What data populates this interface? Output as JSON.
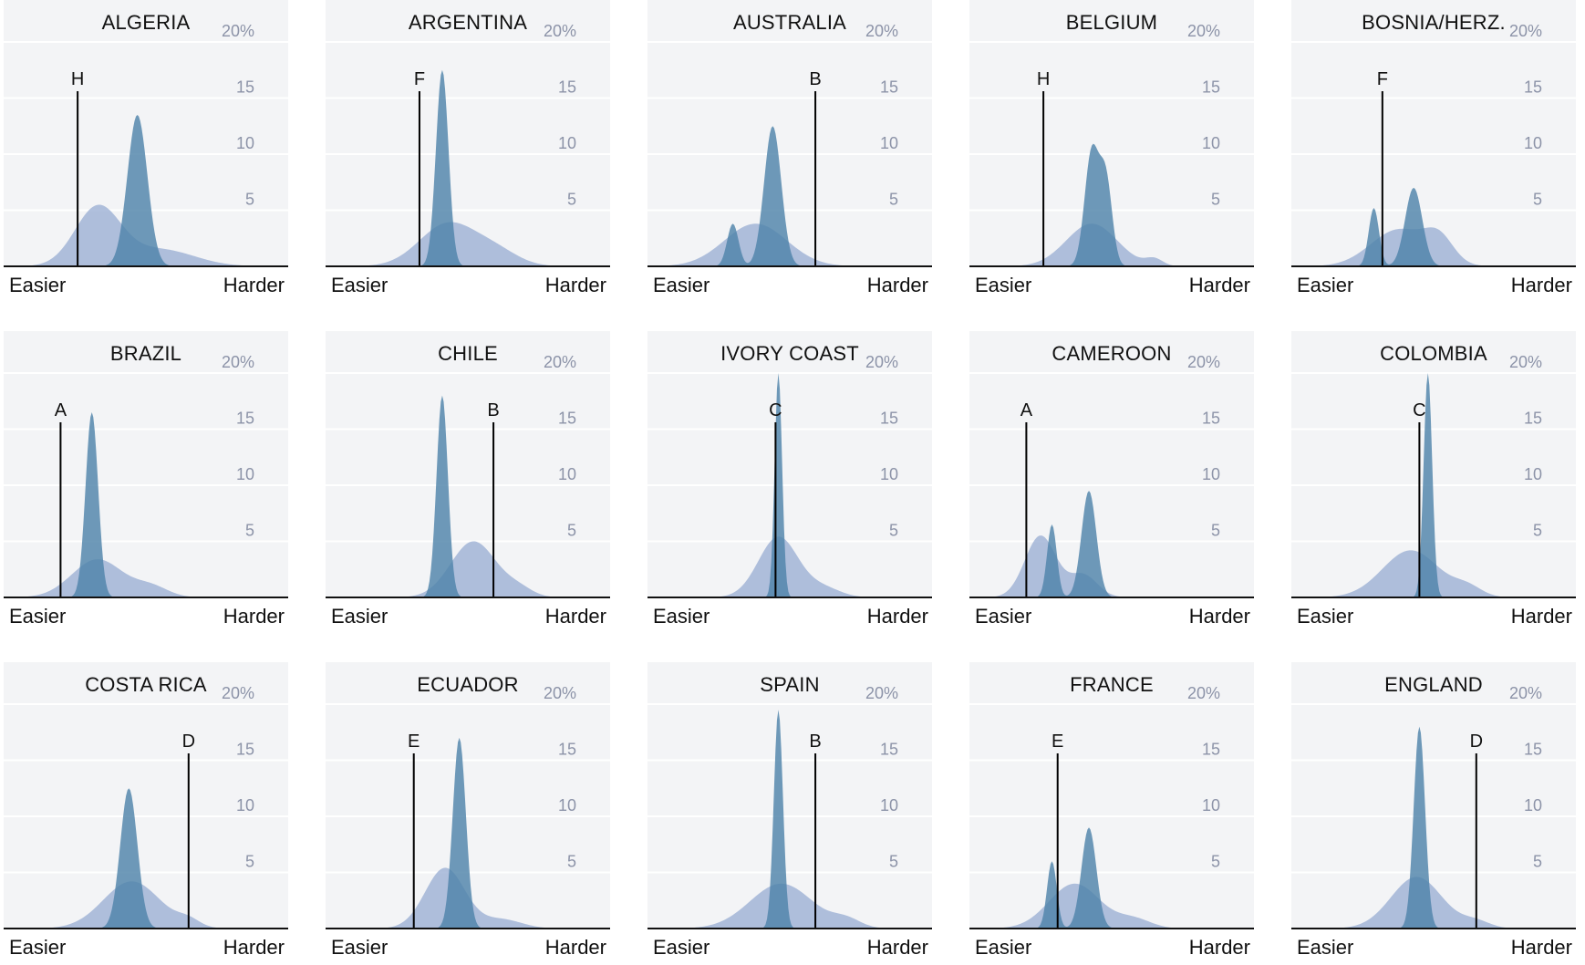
{
  "axis": {
    "y_ticks": [
      "20%",
      "15",
      "10",
      "5"
    ],
    "x_left_label": "Easier",
    "x_right_label": "Harder"
  },
  "colors": {
    "dark_fill": "#4f84aa",
    "light_fill": "#9aaed3",
    "bg": "#f3f4f6",
    "line": "#000000"
  },
  "chart_data": [
    {
      "type": "area",
      "title": "ALGERIA",
      "group": "H",
      "group_x": 0.26,
      "ylim": [
        0,
        20
      ],
      "series": [
        {
          "name": "",
          "peaks": [
            [
              0.47,
              13.5,
              0.035
            ]
          ]
        },
        {
          "name": "",
          "peaks": [
            [
              0.33,
              5.2,
              0.08
            ],
            [
              0.55,
              1.5,
              0.12
            ]
          ]
        }
      ]
    },
    {
      "type": "area",
      "title": "ARGENTINA",
      "group": "F",
      "group_x": 0.33,
      "ylim": [
        0,
        20
      ],
      "series": [
        {
          "name": "",
          "peaks": [
            [
              0.41,
              17.5,
              0.022
            ]
          ]
        },
        {
          "name": "",
          "peaks": [
            [
              0.43,
              3.8,
              0.1
            ],
            [
              0.6,
              1.2,
              0.08
            ]
          ]
        }
      ]
    },
    {
      "type": "area",
      "title": "AUSTRALIA",
      "group": "B",
      "group_x": 0.59,
      "ylim": [
        0,
        20
      ],
      "series": [
        {
          "name": "",
          "peaks": [
            [
              0.3,
              3.8,
              0.02
            ],
            [
              0.44,
              12.5,
              0.03
            ]
          ]
        },
        {
          "name": "",
          "peaks": [
            [
              0.38,
              3.8,
              0.11
            ]
          ]
        }
      ]
    },
    {
      "type": "area",
      "title": "BELGIUM",
      "group": "H",
      "group_x": 0.26,
      "ylim": [
        0,
        20
      ],
      "series": [
        {
          "name": "",
          "peaks": [
            [
              0.43,
              10.2,
              0.025
            ],
            [
              0.48,
              7.5,
              0.022
            ]
          ]
        },
        {
          "name": "",
          "peaks": [
            [
              0.43,
              3.8,
              0.09
            ],
            [
              0.65,
              0.6,
              0.03
            ]
          ]
        }
      ]
    },
    {
      "type": "area",
      "title": "BOSNIA/HERZ.",
      "group": "F",
      "group_x": 0.32,
      "ylim": [
        0,
        20
      ],
      "series": [
        {
          "name": "",
          "peaks": [
            [
              0.29,
              5.2,
              0.018
            ],
            [
              0.43,
              7.0,
              0.03
            ]
          ]
        },
        {
          "name": "",
          "peaks": [
            [
              0.38,
              3.3,
              0.1
            ],
            [
              0.52,
              2.0,
              0.05
            ]
          ]
        }
      ]
    },
    {
      "type": "area",
      "title": "BRAZIL",
      "group": "A",
      "group_x": 0.2,
      "ylim": [
        0,
        20
      ],
      "series": [
        {
          "name": "",
          "peaks": [
            [
              0.31,
              16.5,
              0.022
            ]
          ]
        },
        {
          "name": "",
          "peaks": [
            [
              0.33,
              3.4,
              0.09
            ],
            [
              0.52,
              0.9,
              0.06
            ]
          ]
        }
      ]
    },
    {
      "type": "area",
      "title": "CHILE",
      "group": "B",
      "group_x": 0.59,
      "ylim": [
        0,
        20
      ],
      "series": [
        {
          "name": "",
          "peaks": [
            [
              0.41,
              18.0,
              0.02
            ]
          ]
        },
        {
          "name": "",
          "peaks": [
            [
              0.52,
              5.0,
              0.08
            ],
            [
              0.68,
              0.7,
              0.05
            ]
          ]
        }
      ]
    },
    {
      "type": "area",
      "title": "IVORY COAST",
      "group": "C",
      "group_x": 0.45,
      "ylim": [
        0,
        20
      ],
      "series": [
        {
          "name": "",
          "peaks": [
            [
              0.46,
              20.0,
              0.013
            ]
          ]
        },
        {
          "name": "",
          "peaks": [
            [
              0.46,
              5.4,
              0.07
            ],
            [
              0.62,
              0.8,
              0.06
            ]
          ]
        }
      ]
    },
    {
      "type": "area",
      "title": "CAMEROON",
      "group": "A",
      "group_x": 0.2,
      "ylim": [
        0,
        20
      ],
      "series": [
        {
          "name": "",
          "peaks": [
            [
              0.29,
              6.5,
              0.017
            ],
            [
              0.42,
              9.5,
              0.026
            ]
          ]
        },
        {
          "name": "",
          "peaks": [
            [
              0.25,
              5.5,
              0.055
            ],
            [
              0.4,
              2.0,
              0.05
            ]
          ]
        }
      ]
    },
    {
      "type": "area",
      "title": "COLOMBIA",
      "group": "C",
      "group_x": 0.45,
      "ylim": [
        0,
        20
      ],
      "series": [
        {
          "name": "",
          "peaks": [
            [
              0.48,
              20.0,
              0.015
            ]
          ]
        },
        {
          "name": "",
          "peaks": [
            [
              0.42,
              4.2,
              0.1
            ],
            [
              0.62,
              0.8,
              0.05
            ]
          ]
        }
      ]
    },
    {
      "type": "area",
      "title": "COSTA RICA",
      "group": "D",
      "group_x": 0.65,
      "ylim": [
        0,
        20
      ],
      "series": [
        {
          "name": "",
          "peaks": [
            [
              0.44,
              12.5,
              0.03
            ]
          ]
        },
        {
          "name": "",
          "peaks": [
            [
              0.45,
              4.2,
              0.1
            ],
            [
              0.65,
              0.6,
              0.04
            ]
          ]
        }
      ]
    },
    {
      "type": "area",
      "title": "ECUADOR",
      "group": "E",
      "group_x": 0.31,
      "ylim": [
        0,
        20
      ],
      "series": [
        {
          "name": "",
          "peaks": [
            [
              0.47,
              17.0,
              0.023
            ]
          ]
        },
        {
          "name": "",
          "peaks": [
            [
              0.42,
              5.4,
              0.07
            ],
            [
              0.62,
              0.8,
              0.07
            ]
          ]
        }
      ]
    },
    {
      "type": "area",
      "title": "SPAIN",
      "group": "B",
      "group_x": 0.59,
      "ylim": [
        0,
        20
      ],
      "series": [
        {
          "name": "",
          "peaks": [
            [
              0.46,
              19.5,
              0.016
            ]
          ]
        },
        {
          "name": "",
          "peaks": [
            [
              0.47,
              4.0,
              0.11
            ],
            [
              0.7,
              0.7,
              0.05
            ]
          ]
        }
      ]
    },
    {
      "type": "area",
      "title": "FRANCE",
      "group": "E",
      "group_x": 0.31,
      "ylim": [
        0,
        20
      ],
      "series": [
        {
          "name": "",
          "peaks": [
            [
              0.29,
              6.0,
              0.017
            ],
            [
              0.42,
              9.0,
              0.026
            ]
          ]
        },
        {
          "name": "",
          "peaks": [
            [
              0.37,
              4.0,
              0.09
            ],
            [
              0.58,
              0.8,
              0.06
            ]
          ]
        }
      ]
    },
    {
      "type": "area",
      "title": "ENGLAND",
      "group": "D",
      "group_x": 0.65,
      "ylim": [
        0,
        20
      ],
      "series": [
        {
          "name": "",
          "peaks": [
            [
              0.45,
              18.0,
              0.02
            ]
          ]
        },
        {
          "name": "",
          "peaks": [
            [
              0.44,
              4.6,
              0.09
            ],
            [
              0.65,
              0.6,
              0.05
            ]
          ]
        }
      ]
    }
  ]
}
